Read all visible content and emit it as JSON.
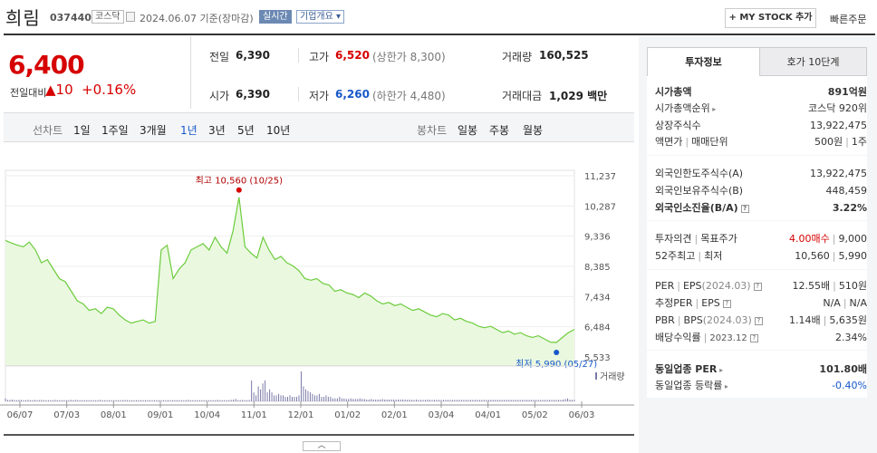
{
  "header": {
    "stock_name": "희림",
    "stock_code": "037440",
    "market": "코스닥",
    "date": "2024.06.07  기준(장마감)",
    "realtime": "실시간",
    "overview": "기업개요 ▾",
    "mystock": "+ MY STOCK 추가",
    "quick_order": "빠른주문"
  },
  "price": {
    "current": "6,400",
    "change_label": "전일대비",
    "change_amount": "▲10",
    "change_percent": "+0.16%"
  },
  "quote": {
    "prev_close_label": "전일",
    "prev_close": "6,390",
    "high_label": "고가",
    "high": "6,520",
    "upper_limit": "(상한가 8,300)",
    "volume_label": "거래량",
    "volume": "160,525",
    "open_label": "시가",
    "open": "6,390",
    "low_label": "저가",
    "low": "6,260",
    "lower_limit": "(하한가 4,480)",
    "value_label": "거래대금",
    "value": "1,029 백만"
  },
  "chart_tabs": {
    "line_label": "선차트",
    "line_items": [
      "1일",
      "1주일",
      "3개월",
      "1년",
      "3년",
      "5년",
      "10년"
    ],
    "active": "1년",
    "candle_label": "봉차트",
    "candle_items": [
      "일봉",
      "주봉",
      "월봉"
    ]
  },
  "chart_data": {
    "type": "area",
    "x_ticks": [
      "06/07",
      "07/03",
      "08/01",
      "09/01",
      "10/04",
      "11/01",
      "12/01",
      "01/02",
      "02/01",
      "03/04",
      "04/01",
      "05/02",
      "06/03"
    ],
    "y_ticks": [
      "11,237",
      "10,287",
      "9,336",
      "8,385",
      "7,434",
      "6,484",
      "5,533"
    ],
    "ylim": [
      5533,
      11237
    ],
    "high_annotation": "최고 10,560 (10/25)",
    "low_annotation": "최저 5,990 (05/27)",
    "volume_label": "거래량",
    "series": [
      {
        "values": [
          9200,
          9120,
          9050,
          9000,
          9150,
          8900,
          8500,
          8600,
          8300,
          8000,
          7900,
          7600,
          7300,
          7200,
          7000,
          7050,
          6900,
          7100,
          7050,
          6850,
          6700,
          6600,
          6650,
          6700,
          6600,
          6650,
          8900,
          9050,
          8000,
          8300,
          8500,
          8900,
          9000,
          9100,
          8900,
          9300,
          9000,
          8800,
          9500,
          10560,
          9000,
          8800,
          8650,
          9300,
          8900,
          8600,
          8700,
          8500,
          8400,
          8250,
          8000,
          7950,
          8000,
          7850,
          7800,
          7600,
          7650,
          7550,
          7500,
          7400,
          7550,
          7450,
          7300,
          7200,
          7250,
          7150,
          7200,
          7100,
          7000,
          7050,
          6950,
          6850,
          6800,
          6900,
          6850,
          6700,
          6750,
          6650,
          6600,
          6500,
          6450,
          6500,
          6400,
          6300,
          6350,
          6250,
          6300,
          6200,
          6150,
          6200,
          6100,
          6000,
          5990,
          6150,
          6300,
          6400
        ]
      }
    ],
    "volume_values": [
      0.1,
      0.05,
      0.05,
      0.06,
      0.05,
      0.04,
      0.05,
      0.05,
      0.04,
      0.04,
      0.05,
      0.04,
      0.04,
      0.05,
      0.04,
      0.04,
      0.05,
      0.04,
      0.04,
      0.04,
      0.04,
      0.04,
      0.05,
      0.04,
      0.04,
      0.04,
      0.04,
      0.04,
      0.04,
      0.05,
      0.04,
      0.05,
      0.04,
      0.04,
      0.04,
      0.04,
      0.04,
      0.04,
      0.04,
      0.04,
      0.04,
      0.04,
      0.05,
      0.04,
      0.04,
      0.04,
      0.04,
      0.04,
      0.04,
      0.04,
      0.04,
      0.04,
      0.04,
      0.05,
      0.04,
      0.04,
      0.04,
      0.04,
      0.04,
      0.04,
      0.04,
      0.04,
      0.04,
      0.04,
      0.04,
      0.04,
      0.04,
      0.04,
      0.04,
      0.04,
      0.04,
      0.04,
      0.04,
      0.04,
      0.04,
      0.04,
      0.04,
      0.04,
      0.04,
      0.04,
      0.04,
      0.05,
      0.04,
      0.04,
      0.04,
      0.04,
      0.04,
      0.04,
      0.04,
      0.04,
      0.04,
      0.04,
      0.04,
      0.04,
      0.05,
      0.04,
      0.04,
      0.04,
      0.04,
      0.04,
      0.05,
      0.06,
      0.08,
      0.04,
      0.04,
      0.05,
      0.04,
      0.04,
      0.05,
      0.7,
      0.3,
      0.2,
      0.5,
      0.4,
      0.6,
      0.7,
      0.3,
      0.4,
      0.3,
      0.2,
      0.2,
      0.25,
      0.2,
      0.2,
      0.15,
      0.15,
      0.2,
      0.15,
      0.15,
      0.15,
      0.2,
      1.0,
      0.5,
      0.4,
      0.35,
      0.3,
      0.25,
      0.2,
      0.2,
      0.25,
      0.15,
      0.15,
      0.2,
      0.15,
      0.15,
      0.1,
      0.1,
      0.1,
      0.15,
      0.1,
      0.1,
      0.08,
      0.08,
      0.1,
      0.08,
      0.08,
      0.08,
      0.1,
      0.08,
      0.08,
      0.06,
      0.06,
      0.08,
      0.06,
      0.06,
      0.06,
      0.06,
      0.08,
      0.06,
      0.06,
      0.06,
      0.06,
      0.06,
      0.06,
      0.06,
      0.06,
      0.06,
      0.06,
      0.05,
      0.06,
      0.05,
      0.05,
      0.06,
      0.05,
      0.05,
      0.05,
      0.05,
      0.06,
      0.05,
      0.05,
      0.05,
      0.05,
      0.05,
      0.05,
      0.05,
      0.05,
      0.05,
      0.05,
      0.05,
      0.05,
      0.05,
      0.05,
      0.05,
      0.05,
      0.05,
      0.05,
      0.05,
      0.05,
      0.05,
      0.05,
      0.05,
      0.05,
      0.05,
      0.05,
      0.05,
      0.05,
      0.05,
      0.05,
      0.05,
      0.05,
      0.05,
      0.05,
      0.05,
      0.05,
      0.05,
      0.05,
      0.05,
      0.05,
      0.05,
      0.05,
      0.05,
      0.05,
      0.05,
      0.05,
      0.05,
      0.05,
      0.05,
      0.05,
      0.05,
      0.05,
      0.05,
      0.05,
      0.05,
      0.05,
      0.05,
      0.05,
      0.05,
      0.06,
      0.08,
      0.1,
      0.06,
      0.05,
      0.05
    ]
  },
  "right_panel": {
    "tab_active": "투자정보",
    "tab_inactive": "호가 10단계",
    "market_cap_label": "시가총액",
    "market_cap": "891억원",
    "rank_label": "시가총액순위",
    "rank": "코스닥 920위",
    "shares_label": "상장주식수",
    "shares": "13,922,475",
    "par_label": "액면가",
    "trade_unit_label": "매매단위",
    "par": "500원",
    "trade_unit": "1주",
    "foreign_limit_label": "외국인한도주식수(A)",
    "foreign_limit": "13,922,475",
    "foreign_own_label": "외국인보유주식수(B)",
    "foreign_own": "448,459",
    "foreign_ratio_label": "외국인소진율(B/A)",
    "foreign_ratio": "3.22%",
    "opinion_label": "투자의견",
    "target_label": "목표주가",
    "opinion": "4.00매수",
    "target": "9,000",
    "week52_label": "52주최고",
    "week52_low_label": "최저",
    "week52_high": "10,560",
    "week52_low": "5,990",
    "per_label": "PER",
    "eps_label": "EPS",
    "eps_period": "(2024.03)",
    "per": "12.55배",
    "eps": "510원",
    "est_per_label": "추정PER",
    "est_eps_label": "EPS",
    "est_per": "N/A",
    "est_eps": "N/A",
    "pbr_label": "PBR",
    "bps_label": "BPS",
    "bps_period": "(2024.03)",
    "pbr": "1.14배",
    "bps": "5,635원",
    "div_label": "배당수익률",
    "div_period": "2023.12",
    "div": "2.34%",
    "industry_per_label": "동일업종 PER",
    "industry_per": "101.80배",
    "industry_rate_label": "동일업종 등락률",
    "industry_rate": "-0.40%"
  },
  "colors": {
    "up": "#d60000",
    "down": "#1658c9",
    "chart_line": "#6ccc3c",
    "chart_fill": "#eaf8e0"
  }
}
